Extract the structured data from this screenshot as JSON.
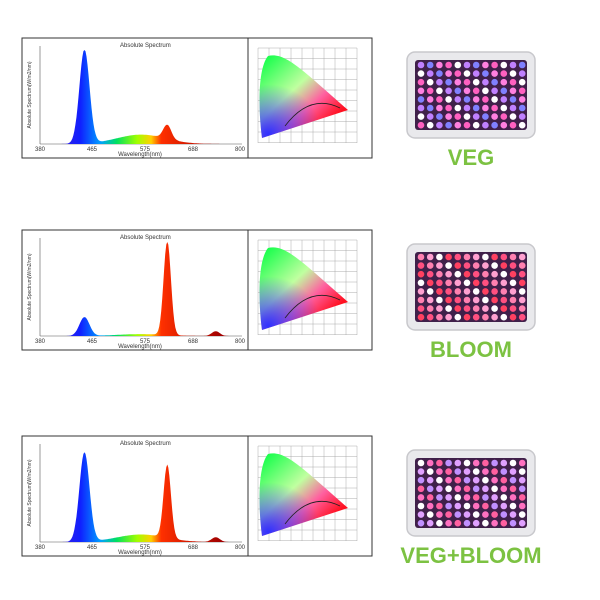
{
  "rows": [
    {
      "spectrum": {
        "title": "Absolute Spectrum",
        "y_label": "Absolute Spectrum(W/m2/nm)",
        "x_label": "Wavelength(nm)",
        "x_ticks": [
          "380",
          "465",
          "575",
          "688",
          "800"
        ]
      },
      "label": "VEG"
    },
    {
      "spectrum": {
        "title": "Absolute Spectrum",
        "y_label": "Absolute Spectrum(W/m2/nm)",
        "x_label": "Wavelength(nm)",
        "x_ticks": [
          "380",
          "465",
          "575",
          "688",
          "800"
        ]
      },
      "label": "BLOOM"
    },
    {
      "spectrum": {
        "title": "Absolute Spectrum",
        "y_label": "Absolute Spectrum(W/m2/nm)",
        "x_label": "Wavelength(nm)",
        "x_ticks": [
          "380",
          "465",
          "575",
          "688",
          "800"
        ]
      },
      "label": "VEG+BLOOM"
    }
  ]
}
